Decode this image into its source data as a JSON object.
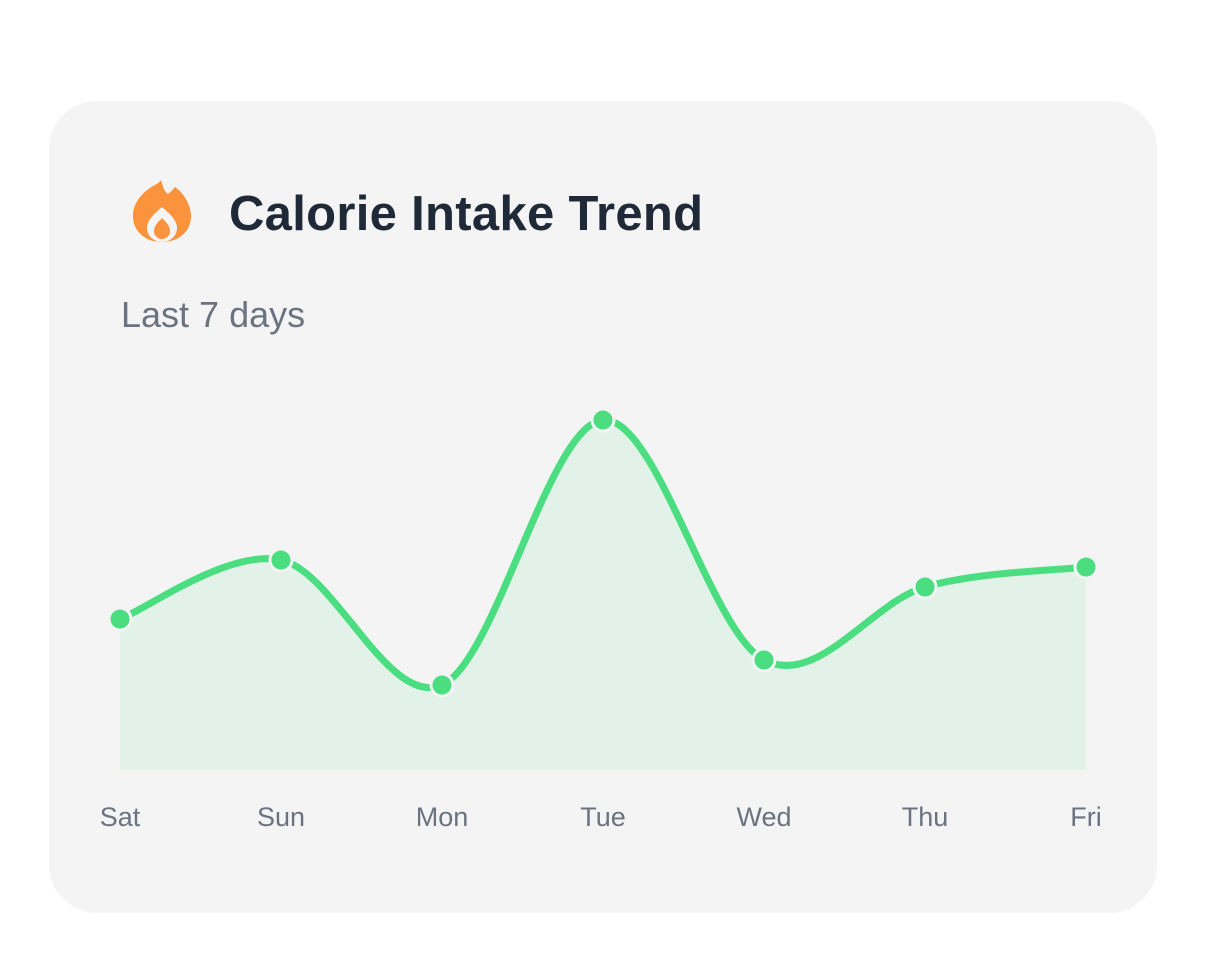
{
  "card": {
    "title": "Calorie Intake Trend",
    "subtitle": "Last 7 days",
    "icon": "fire-icon",
    "icon_color": "#fb923c"
  },
  "chart_data": {
    "type": "area",
    "title": "Calorie Intake Trend",
    "subtitle": "Last 7 days",
    "categories": [
      "Sat",
      "Sun",
      "Mon",
      "Tue",
      "Wed",
      "Thu",
      "Fri"
    ],
    "values": [
      151,
      210,
      85,
      350,
      110,
      183,
      203
    ],
    "ylim": [
      0,
      400
    ],
    "xlabel": "",
    "ylabel": "",
    "grid": false,
    "legend": "none",
    "line_color": "#4ade80",
    "fill_color": "#e3f2e9",
    "smooth": true
  }
}
